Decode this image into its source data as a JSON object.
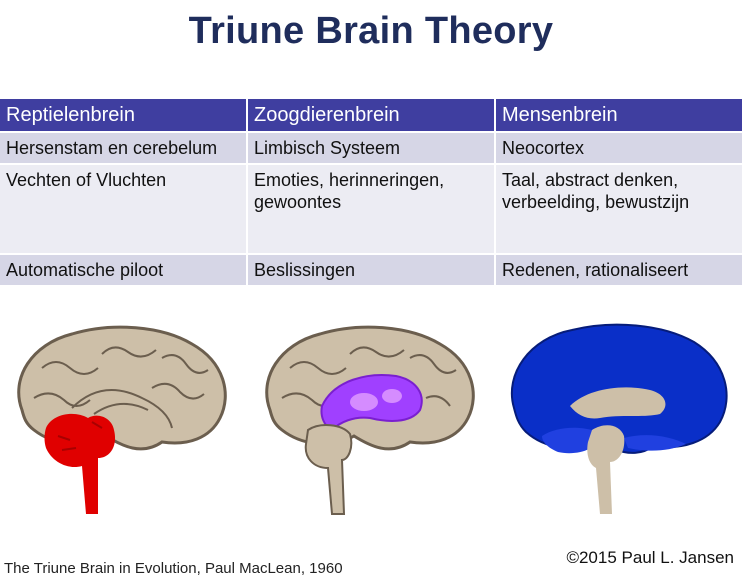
{
  "title": "Triune Brain Theory",
  "columns": [
    {
      "header": "Reptielenbrein",
      "row1": "Hersenstam en cerebelum",
      "row2": "Vechten of Vluchten",
      "row3": "Automatische piloot",
      "highlight_color": "#e00000",
      "icon": "brain-reptilian-icon"
    },
    {
      "header": "Zoogdierenbrein",
      "row1": "Limbisch Systeem",
      "row2": "Emoties, herinneringen, gewoontes",
      "row3": "Beslissingen",
      "highlight_color": "#9b30ff",
      "icon": "brain-limbic-icon"
    },
    {
      "header": "Mensenbrein",
      "row1": "Neocortex",
      "row2": "Taal, abstract denken, verbeelding, bewustzijn",
      "row3": "Redenen, rationaliseert",
      "highlight_color": "#0a2fc8",
      "icon": "brain-neocortex-icon"
    }
  ],
  "credit": "The Triune Brain in Evolution, Paul MacLean, 1960",
  "copyright": "©2015 Paul L. Jansen",
  "colors": {
    "title": "#1f2d5c",
    "header_bg": "#3f3ea0",
    "brain_tan": "#cdbfa8",
    "brain_outline": "#6b5e4e"
  }
}
